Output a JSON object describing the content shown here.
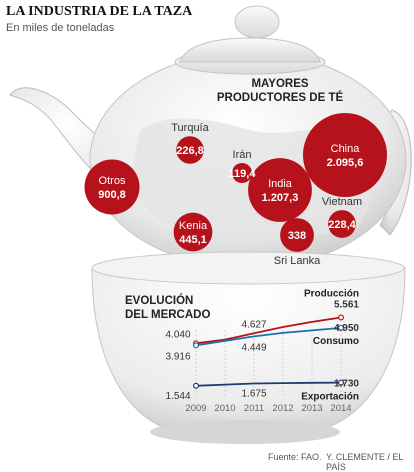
{
  "title": "LA INDUSTRIA DE LA TAZA",
  "subtitle": "En miles de toneladas",
  "colors": {
    "bubble": "#b5121b",
    "produccion": "#b5121b",
    "consumo": "#1b6fb5",
    "exportacion": "#1e3a6e"
  },
  "chart_data": [
    {
      "type": "bubble",
      "title": "MAYORES PRODUCTORES DE TÉ",
      "points": [
        {
          "name": "China",
          "value": 2095.6,
          "label": "2.095,6"
        },
        {
          "name": "India",
          "value": 1207.3,
          "label": "1.207,3"
        },
        {
          "name": "Otros",
          "value": 900.8,
          "label": "900,8"
        },
        {
          "name": "Kenia",
          "value": 445.1,
          "label": "445,1"
        },
        {
          "name": "Sri Lanka",
          "value": 338,
          "label": "338"
        },
        {
          "name": "Vietnam",
          "value": 228.4,
          "label": "228,4"
        },
        {
          "name": "Turquía",
          "value": 226.8,
          "label": "226,8"
        },
        {
          "name": "Irán",
          "value": 119.4,
          "label": "119,4"
        }
      ]
    },
    {
      "type": "line",
      "title": "EVOLUCIÓN DEL MERCADO",
      "x": [
        "2009",
        "2010",
        "2011",
        "2012",
        "2013",
        "2014"
      ],
      "series": [
        {
          "name": "Producción",
          "values": [
            4040,
            4260,
            4627,
            5000,
            5300,
            5561
          ],
          "labels": {
            "0": "4.040",
            "2": "4.627",
            "5": "5.561"
          }
        },
        {
          "name": "Consumo",
          "values": [
            3916,
            4180,
            4449,
            4650,
            4800,
            4950
          ],
          "labels": {
            "0": "3.916",
            "2": "4.449",
            "5": "4.950"
          }
        },
        {
          "name": "Exportación",
          "values": [
            1544,
            1610,
            1675,
            1700,
            1715,
            1730
          ],
          "labels": {
            "0": "1.544",
            "2": "1.675",
            "5": "1.730"
          }
        }
      ]
    }
  ],
  "footer": {
    "source": "Fuente: FAO.",
    "credit": "Y. CLEMENTE / EL PAÍS"
  }
}
